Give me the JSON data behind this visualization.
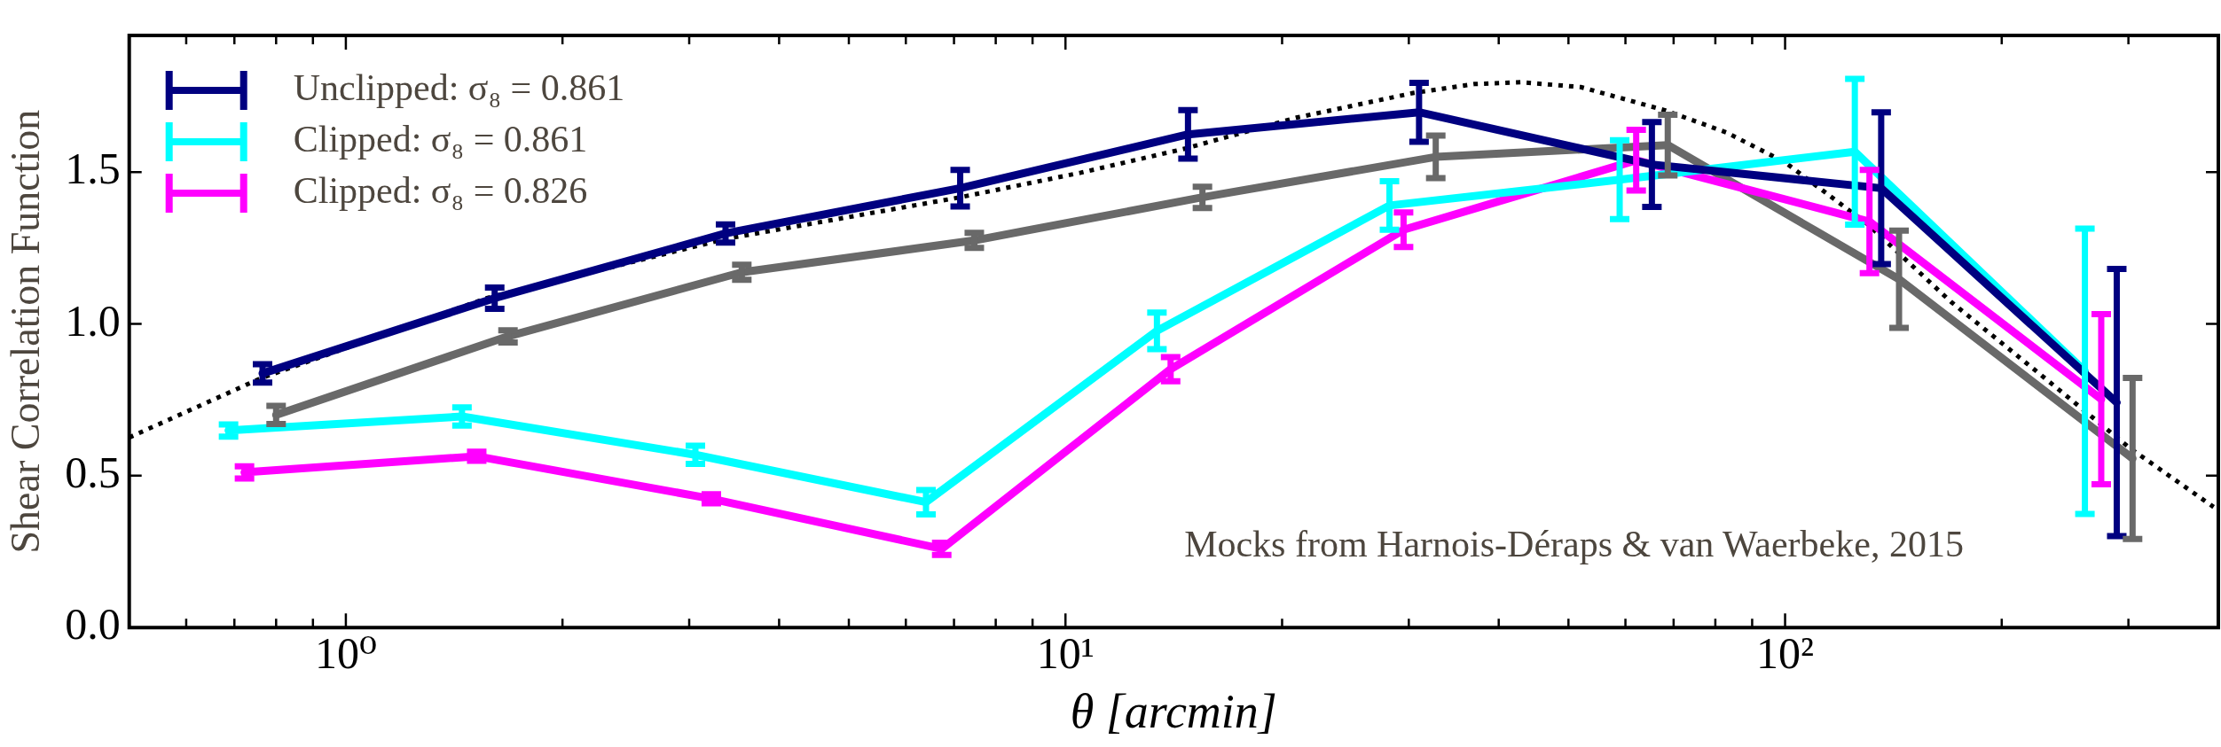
{
  "chart_data": {
    "type": "line",
    "xlabel": "θ [arcmin]",
    "ylabel": "Shear Correlation Function",
    "log": "x",
    "xlim": [
      0.5,
      400
    ],
    "ylim": [
      0,
      1.95
    ],
    "xticks": [
      {
        "value": 0.6,
        "label": null
      },
      {
        "value": 0.7,
        "label": null
      },
      {
        "value": 0.8,
        "label": null
      },
      {
        "value": 0.9,
        "label": null
      },
      {
        "value": 1,
        "label": "10⁰"
      },
      {
        "value": 2,
        "label": null
      },
      {
        "value": 3,
        "label": null
      },
      {
        "value": 4,
        "label": null
      },
      {
        "value": 5,
        "label": null
      },
      {
        "value": 6,
        "label": null
      },
      {
        "value": 7,
        "label": null
      },
      {
        "value": 8,
        "label": null
      },
      {
        "value": 9,
        "label": null
      },
      {
        "value": 10,
        "label": "10¹"
      },
      {
        "value": 20,
        "label": null
      },
      {
        "value": 30,
        "label": null
      },
      {
        "value": 40,
        "label": null
      },
      {
        "value": 50,
        "label": null
      },
      {
        "value": 60,
        "label": null
      },
      {
        "value": 70,
        "label": null
      },
      {
        "value": 80,
        "label": null
      },
      {
        "value": 90,
        "label": null
      },
      {
        "value": 100,
        "label": "10²"
      },
      {
        "value": 200,
        "label": null
      },
      {
        "value": 300,
        "label": null
      },
      {
        "value": 400,
        "label": null
      }
    ],
    "yticks": [
      {
        "value": 0,
        "label": "0.0"
      },
      {
        "value": 0.5,
        "label": "0.5"
      },
      {
        "value": 1,
        "label": "1.0"
      },
      {
        "value": 1.5,
        "label": "1.5"
      }
    ],
    "grid": false,
    "legend": "top left",
    "marker": "none",
    "series": [
      {
        "name": "Unclipped: σ₈ = 0.861",
        "color": "#000080",
        "x": [
          0.766,
          1.61,
          3.37,
          7.14,
          14.8,
          31.0,
          65.3,
          136,
          289
        ],
        "values": [
          0.837,
          1.085,
          1.298,
          1.447,
          1.624,
          1.697,
          1.525,
          1.447,
          0.741
        ],
        "errors": [
          0.03,
          0.035,
          0.03,
          0.06,
          0.08,
          0.097,
          0.14,
          0.25,
          0.44
        ]
      },
      {
        "name": "Clipped: σ₈ = 0.861",
        "color": "#00ffff",
        "x": [
          0.687,
          1.45,
          3.06,
          6.4,
          13.4,
          28.2,
          58.9,
          125,
          261
        ],
        "values": [
          0.649,
          0.695,
          0.569,
          0.413,
          0.977,
          1.39,
          1.475,
          1.567,
          0.844
        ],
        "errors": [
          0.02,
          0.03,
          0.03,
          0.04,
          0.06,
          0.08,
          0.13,
          0.24,
          0.47
        ]
      },
      {
        "name": "Clipped: σ₈ = 0.826",
        "color": "#ff00ff",
        "x": [
          0.723,
          1.52,
          3.22,
          6.73,
          14.0,
          29.5,
          62.1,
          131,
          275
        ],
        "values": [
          0.511,
          0.564,
          0.424,
          0.259,
          0.851,
          1.31,
          1.539,
          1.337,
          0.752
        ],
        "errors": [
          0.02,
          0.015,
          0.015,
          0.02,
          0.04,
          0.057,
          0.1,
          0.17,
          0.28
        ]
      },
      {
        "color": "#696969",
        "x": [
          0.8,
          1.68,
          3.55,
          7.47,
          15.5,
          32.7,
          68.7,
          144,
          304
        ],
        "values": [
          0.7,
          0.959,
          1.17,
          1.275,
          1.417,
          1.55,
          1.589,
          1.147,
          0.557
        ],
        "errors": [
          0.03,
          0.02,
          0.025,
          0.025,
          0.035,
          0.07,
          0.1,
          0.16,
          0.265
        ]
      },
      {
        "type": "line",
        "line_style": "dotted",
        "color": "#000000",
        "x": [
          0.5,
          0.762,
          1.57,
          3.37,
          7.14,
          10.5,
          14.7,
          21,
          30.5,
          37,
          43.0,
          52,
          68,
          83,
          100,
          130,
          170,
          230,
          301,
          394
        ],
        "values": [
          0.626,
          0.821,
          1.085,
          1.28,
          1.417,
          1.498,
          1.578,
          1.68,
          1.761,
          1.79,
          1.796,
          1.78,
          1.704,
          1.63,
          1.532,
          1.33,
          1.073,
          0.82,
          0.592,
          0.397
        ]
      }
    ],
    "annotations": [
      "Mocks from Harnois-Déraps & van Waerbeke, 2015"
    ]
  }
}
